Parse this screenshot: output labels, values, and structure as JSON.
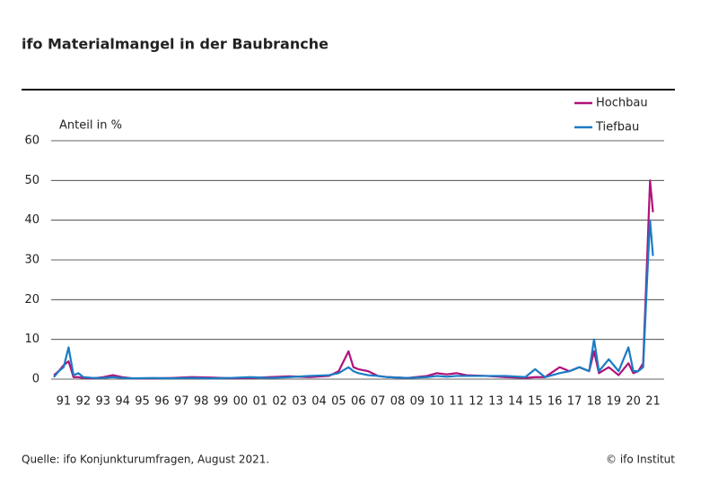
{
  "chart_data": {
    "type": "line",
    "title": "ifo Materialmangel in der Baubranche",
    "y_label": "Anteil in %",
    "source": "Quelle: ifo Konjunkturumfragen, August 2021.",
    "credit": "© ifo Institut",
    "x": [
      1991,
      1991.25,
      1991.5,
      1991.75,
      1992,
      1992.25,
      1992.5,
      1993,
      1993.5,
      1994,
      1994.5,
      1995,
      1996,
      1997,
      1998,
      1999,
      2000,
      2001,
      2002,
      2003,
      2004,
      2005,
      2005.5,
      2006,
      2006.25,
      2006.5,
      2007,
      2007.5,
      2008,
      2009,
      2010,
      2010.5,
      2011,
      2011.5,
      2012,
      2013,
      2014,
      2015,
      2015.5,
      2016,
      2016.75,
      2017.25,
      2017.75,
      2018.25,
      2018.5,
      2018.75,
      2019.25,
      2019.75,
      2020.25,
      2020.5,
      2020.75,
      2021,
      2021.2,
      2021.35,
      2021.5
    ],
    "series": [
      {
        "name": "Hochbau",
        "color": "#b0127a",
        "values": [
          1,
          2,
          3.5,
          4.5,
          0.5,
          0.5,
          0.3,
          0.2,
          0.5,
          1,
          0.5,
          0.2,
          0.2,
          0.3,
          0.5,
          0.4,
          0.2,
          0.3,
          0.5,
          0.7,
          0.5,
          0.8,
          2,
          7,
          3,
          2.5,
          2,
          0.8,
          0.5,
          0.3,
          0.8,
          1.5,
          1.2,
          1.5,
          1,
          0.8,
          0.5,
          0.3,
          0.5,
          0.5,
          3,
          2,
          3,
          2,
          7,
          1.5,
          3,
          1,
          4,
          1.5,
          2,
          4,
          30,
          50,
          42
        ]
      },
      {
        "name": "Tiefbau",
        "color": "#1a7cc4",
        "values": [
          0.5,
          2,
          3,
          8,
          1,
          1.5,
          0.5,
          0.3,
          0.3,
          0.5,
          0.3,
          0.2,
          0.3,
          0.2,
          0.3,
          0.2,
          0.3,
          0.5,
          0.3,
          0.5,
          0.8,
          1,
          1.5,
          3,
          2,
          1.5,
          1,
          0.8,
          0.5,
          0.3,
          0.5,
          0.8,
          0.6,
          0.8,
          0.8,
          0.8,
          0.8,
          0.5,
          2.5,
          0.5,
          1.5,
          2,
          3,
          2,
          10,
          2,
          5,
          2,
          8,
          2,
          2,
          3,
          25,
          40,
          31
        ]
      }
    ],
    "xlim": [
      1991,
      2021.75
    ],
    "ylim": [
      0,
      60
    ],
    "yticks": [
      0,
      10,
      20,
      30,
      40,
      50,
      60
    ],
    "xticks": [
      {
        "value": 1991.5,
        "label": "91"
      },
      {
        "value": 1992.5,
        "label": "92"
      },
      {
        "value": 1993.5,
        "label": "93"
      },
      {
        "value": 1994.5,
        "label": "94"
      },
      {
        "value": 1995.5,
        "label": "95"
      },
      {
        "value": 1996.5,
        "label": "96"
      },
      {
        "value": 1997.5,
        "label": "97"
      },
      {
        "value": 1998.5,
        "label": "98"
      },
      {
        "value": 1999.5,
        "label": "99"
      },
      {
        "value": 2000.5,
        "label": "00"
      },
      {
        "value": 2001.5,
        "label": "01"
      },
      {
        "value": 2002.5,
        "label": "02"
      },
      {
        "value": 2003.5,
        "label": "03"
      },
      {
        "value": 2004.5,
        "label": "04"
      },
      {
        "value": 2005.5,
        "label": "05"
      },
      {
        "value": 2006.5,
        "label": "06"
      },
      {
        "value": 2007.5,
        "label": "07"
      },
      {
        "value": 2008.5,
        "label": "08"
      },
      {
        "value": 2009.5,
        "label": "09"
      },
      {
        "value": 2010.5,
        "label": "10"
      },
      {
        "value": 2011.5,
        "label": "11"
      },
      {
        "value": 2012.5,
        "label": "12"
      },
      {
        "value": 2013.5,
        "label": "13"
      },
      {
        "value": 2014.5,
        "label": "14"
      },
      {
        "value": 2015.5,
        "label": "15"
      },
      {
        "value": 2016.5,
        "label": "16"
      },
      {
        "value": 2017.5,
        "label": "17"
      },
      {
        "value": 2018.5,
        "label": "18"
      },
      {
        "value": 2019.5,
        "label": "19"
      },
      {
        "value": 2020.5,
        "label": "20"
      },
      {
        "value": 2021.5,
        "label": "21"
      }
    ],
    "grid": true
  }
}
